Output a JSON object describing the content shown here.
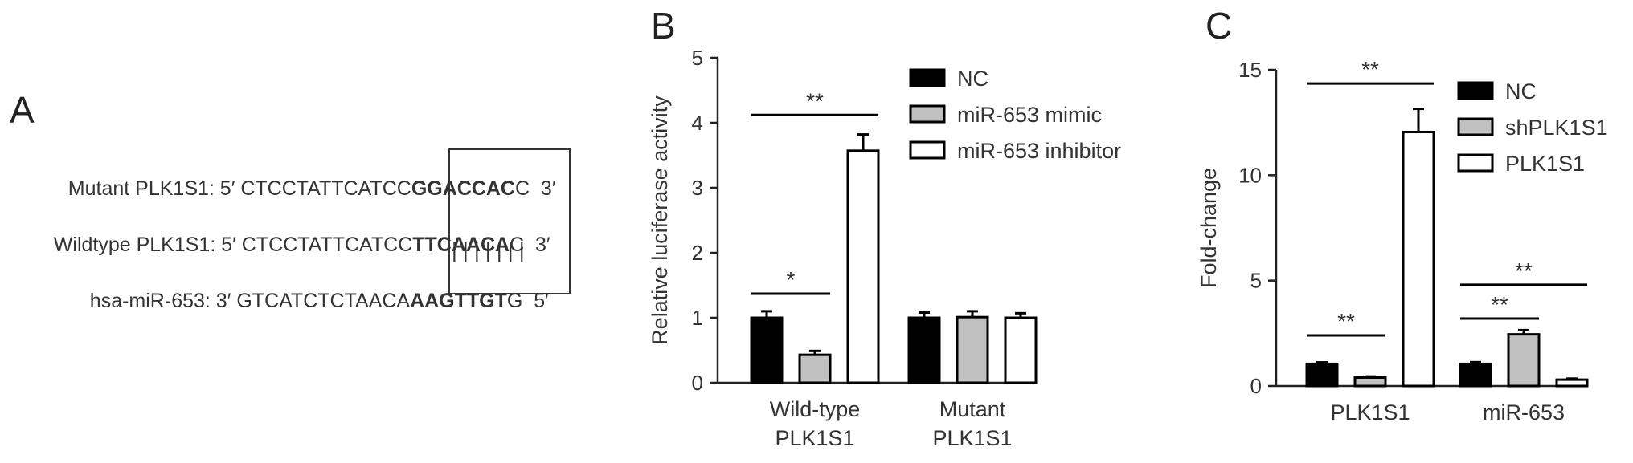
{
  "panels": {
    "a": "A",
    "b": "B",
    "c": "C"
  },
  "sequences": {
    "rows": [
      {
        "label": "Mutant PLK1S1: 5′ CTCCTATTCATCC",
        "boxed": "GGACCAC",
        "tail": "C  3′"
      },
      {
        "label": "Wildtype PLK1S1: 5′ CTCCTATTCATCC",
        "boxed": "TTCAACA",
        "tail": "C  3′"
      },
      {
        "label": "hsa-miR-653: 3′ GTCATCTCTAACA",
        "boxed": "AAGTTGT",
        "tail": "G  5′"
      }
    ],
    "pairing": "| | | | | | |"
  },
  "chart_data": [
    {
      "type": "bar",
      "title": "",
      "ylabel": "Relative luciferase activity",
      "xlabel": "",
      "ylim": [
        0,
        5
      ],
      "yticks": [
        "0",
        "1",
        "2",
        "3",
        "4",
        "5"
      ],
      "categories": [
        "Wild-type PLK1S1",
        "Mutant PLK1S1"
      ],
      "category_lines": [
        [
          "Wild-type",
          "PLK1S1"
        ],
        [
          "Mutant",
          "PLK1S1"
        ]
      ],
      "series": [
        {
          "name": "NC",
          "values": [
            1.0,
            1.0
          ],
          "errors": [
            0.1,
            0.08
          ],
          "fill": "#000000"
        },
        {
          "name": "miR-653 mimic",
          "values": [
            0.43,
            1.01
          ],
          "errors": [
            0.06,
            0.09
          ],
          "fill": "#c0c0c0"
        },
        {
          "name": "miR-653 inhibitor",
          "values": [
            3.57,
            1.0
          ],
          "errors": [
            0.25,
            0.07
          ],
          "fill": "#ffffff"
        }
      ],
      "significance": [
        {
          "label": "*",
          "from_series": 0,
          "to_series": 1,
          "category": 0,
          "y": 1.37
        },
        {
          "label": "**",
          "from_series": 0,
          "to_series": 2,
          "category": 0,
          "y": 4.12
        }
      ],
      "legend_position": "top-right"
    },
    {
      "type": "bar",
      "title": "",
      "ylabel": "Fold-change",
      "xlabel": "",
      "ylim": [
        0,
        15
      ],
      "yticks": [
        "0",
        "5",
        "10",
        "15"
      ],
      "categories": [
        "PLK1S1",
        "miR-653"
      ],
      "category_lines": [
        [
          "PLK1S1"
        ],
        [
          "miR-653"
        ]
      ],
      "series": [
        {
          "name": "NC",
          "values": [
            1.05,
            1.05
          ],
          "errors": [
            0.07,
            0.08
          ],
          "fill": "#000000"
        },
        {
          "name": "shPLK1S1",
          "values": [
            0.4,
            2.45
          ],
          "errors": [
            0.05,
            0.2
          ],
          "fill": "#c0c0c0"
        },
        {
          "name": "PLK1S1",
          "values": [
            12.05,
            0.3
          ],
          "errors": [
            1.1,
            0.05
          ],
          "fill": "#ffffff"
        }
      ],
      "significance": [
        {
          "label": "**",
          "from_series": 0,
          "to_series": 1,
          "category": 0,
          "y": 2.4
        },
        {
          "label": "**",
          "from_series": 0,
          "to_series": 2,
          "category": 0,
          "y": 14.35
        },
        {
          "label": "**",
          "from_series": 0,
          "to_series": 1,
          "category": 1,
          "y": 3.2
        },
        {
          "label": "**",
          "from_series": 0,
          "to_series": 2,
          "category": 1,
          "y": 4.8
        }
      ],
      "legend_position": "top-right"
    }
  ]
}
